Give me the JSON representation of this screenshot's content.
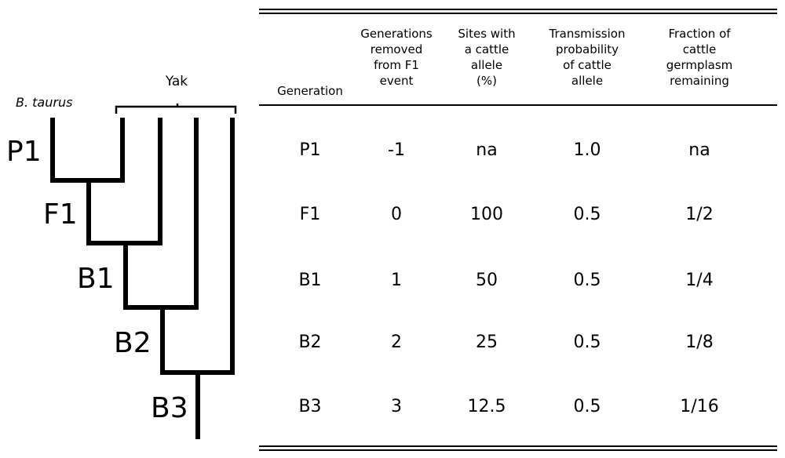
{
  "tree": {
    "taurus_label": "B. taurus",
    "yak_label": "Yak",
    "node_labels": [
      "P1",
      "F1",
      "B1",
      "B2",
      "B3"
    ]
  },
  "table": {
    "headers": {
      "generation": "Generation",
      "removed": "Generations\nremoved\nfrom F1\nevent",
      "sites": "Sites with\na cattle\nallele\n(%)",
      "transmission": "Transmission\nprobability\nof cattle\nallele",
      "fraction": "Fraction of\ncattle\ngermplasm\nremaining"
    },
    "rows": [
      {
        "generation": "P1",
        "removed": "-1",
        "sites": "na",
        "transmission": "1.0",
        "fraction": "na"
      },
      {
        "generation": "F1",
        "removed": "0",
        "sites": "100",
        "transmission": "0.5",
        "fraction": "1/2"
      },
      {
        "generation": "B1",
        "removed": "1",
        "sites": "50",
        "transmission": "0.5",
        "fraction": "1/4"
      },
      {
        "generation": "B2",
        "removed": "2",
        "sites": "25",
        "transmission": "0.5",
        "fraction": "1/8"
      },
      {
        "generation": "B3",
        "removed": "3",
        "sites": "12.5",
        "transmission": "0.5",
        "fraction": "1/16"
      }
    ]
  }
}
